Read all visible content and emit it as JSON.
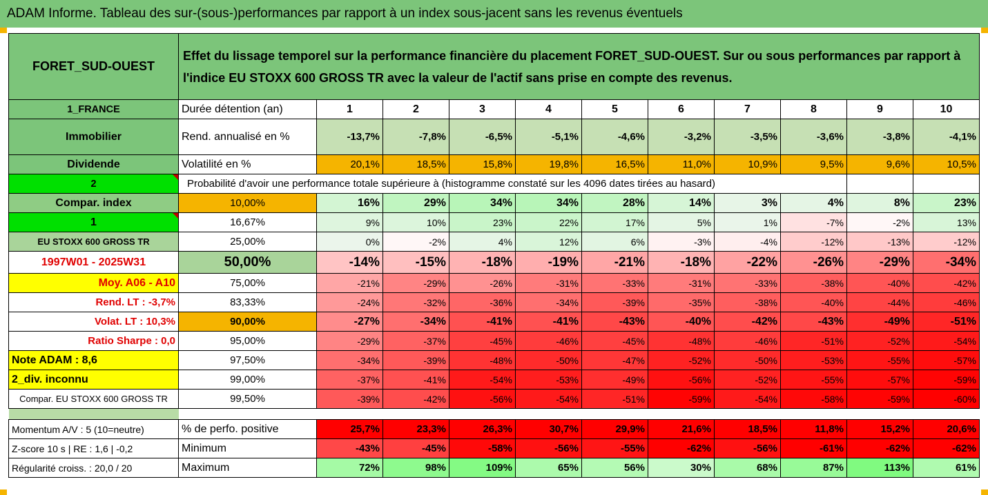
{
  "header": {
    "title": "ADAM Informe. Tableau des sur-(sous-)performances par rapport à un index sous-jacent sans les revenus éventuels"
  },
  "fund": {
    "name": "FORET_SUD-OUEST",
    "description": "Effet du lissage temporel sur la performance financière du placement FORET_SUD-OUEST. Sur ou sous performances par rapport à l'indice EU STOXX 600 GROSS TR avec la valeur de l'actif sans prise en compte des revenus.",
    "country": "1_FRANCE",
    "type": "Immobilier",
    "income": "Dividende"
  },
  "years_label": "Durée détention (an)",
  "years": [
    "1",
    "2",
    "3",
    "4",
    "5",
    "6",
    "7",
    "8",
    "9",
    "10"
  ],
  "rend_label": "Rend. annualisé en %",
  "rend": [
    "-13,7%",
    "-7,8%",
    "-6,5%",
    "-5,1%",
    "-4,6%",
    "-3,2%",
    "-3,5%",
    "-3,6%",
    "-3,8%",
    "-4,1%"
  ],
  "vol_label": "Volatilité en %",
  "vol": [
    "20,1%",
    "18,5%",
    "15,8%",
    "19,8%",
    "16,5%",
    "11,0%",
    "10,9%",
    "9,5%",
    "9,6%",
    "10,5%"
  ],
  "prob_code": "2",
  "prob_label": "Probabilité d'avoir une performance totale supérieure à (histogramme constaté sur les 4096 dates tirées au hasard)",
  "left_labels": [
    "Compar. index",
    "1",
    "EU STOXX 600 GROSS TR",
    "1997W01 - 2025W31",
    "Moy. A06 - A10",
    "Rend. LT :   -3,7%",
    "Volat. LT :   10,3%",
    "Ratio Sharpe :   0,0",
    "Note ADAM : 8,6",
    "2_div. inconnu",
    "Compar. EU STOXX 600 GROSS TR"
  ],
  "grid": [
    {
      "pct": "10,00%",
      "vals": [
        "16%",
        "29%",
        "34%",
        "34%",
        "28%",
        "14%",
        "3%",
        "4%",
        "8%",
        "23%"
      ]
    },
    {
      "pct": "16,67%",
      "vals": [
        "9%",
        "10%",
        "23%",
        "22%",
        "17%",
        "5%",
        "1%",
        "-7%",
        "-2%",
        "13%"
      ]
    },
    {
      "pct": "25,00%",
      "vals": [
        "0%",
        "-2%",
        "4%",
        "12%",
        "6%",
        "-3%",
        "-4%",
        "-12%",
        "-13%",
        "-12%"
      ]
    },
    {
      "pct": "50,00%",
      "vals": [
        "-14%",
        "-15%",
        "-18%",
        "-19%",
        "-21%",
        "-18%",
        "-22%",
        "-26%",
        "-29%",
        "-34%"
      ]
    },
    {
      "pct": "75,00%",
      "vals": [
        "-21%",
        "-29%",
        "-26%",
        "-31%",
        "-33%",
        "-31%",
        "-33%",
        "-38%",
        "-40%",
        "-42%"
      ]
    },
    {
      "pct": "83,33%",
      "vals": [
        "-24%",
        "-32%",
        "-36%",
        "-34%",
        "-39%",
        "-35%",
        "-38%",
        "-40%",
        "-44%",
        "-46%"
      ]
    },
    {
      "pct": "90,00%",
      "vals": [
        "-27%",
        "-34%",
        "-41%",
        "-41%",
        "-43%",
        "-40%",
        "-42%",
        "-43%",
        "-49%",
        "-51%"
      ]
    },
    {
      "pct": "95,00%",
      "vals": [
        "-29%",
        "-37%",
        "-45%",
        "-46%",
        "-45%",
        "-48%",
        "-46%",
        "-51%",
        "-52%",
        "-54%"
      ]
    },
    {
      "pct": "97,50%",
      "vals": [
        "-34%",
        "-39%",
        "-48%",
        "-50%",
        "-47%",
        "-52%",
        "-50%",
        "-53%",
        "-55%",
        "-57%"
      ]
    },
    {
      "pct": "99,00%",
      "vals": [
        "-37%",
        "-41%",
        "-54%",
        "-53%",
        "-49%",
        "-56%",
        "-52%",
        "-55%",
        "-57%",
        "-59%"
      ]
    },
    {
      "pct": "99,50%",
      "vals": [
        "-39%",
        "-42%",
        "-56%",
        "-54%",
        "-51%",
        "-59%",
        "-54%",
        "-58%",
        "-59%",
        "-60%"
      ]
    }
  ],
  "bottom": [
    {
      "left": "Momentum A/V : 5 (10=neutre)",
      "label": "% de perfo. positive",
      "vals": [
        "25,7%",
        "23,3%",
        "26,3%",
        "30,7%",
        "29,9%",
        "21,6%",
        "18,5%",
        "11,8%",
        "15,2%",
        "20,6%"
      ]
    },
    {
      "left": "Z-score 10 s  | RE : 1,6  | -0,2",
      "label": "Minimum",
      "vals": [
        "-43%",
        "-45%",
        "-58%",
        "-56%",
        "-55%",
        "-62%",
        "-56%",
        "-61%",
        "-62%",
        "-62%"
      ]
    },
    {
      "left": "Régularité croiss. : 20,0 / 20",
      "label": "Maximum",
      "vals": [
        "72%",
        "98%",
        "109%",
        "65%",
        "56%",
        "30%",
        "68%",
        "87%",
        "113%",
        "61%"
      ]
    }
  ]
}
